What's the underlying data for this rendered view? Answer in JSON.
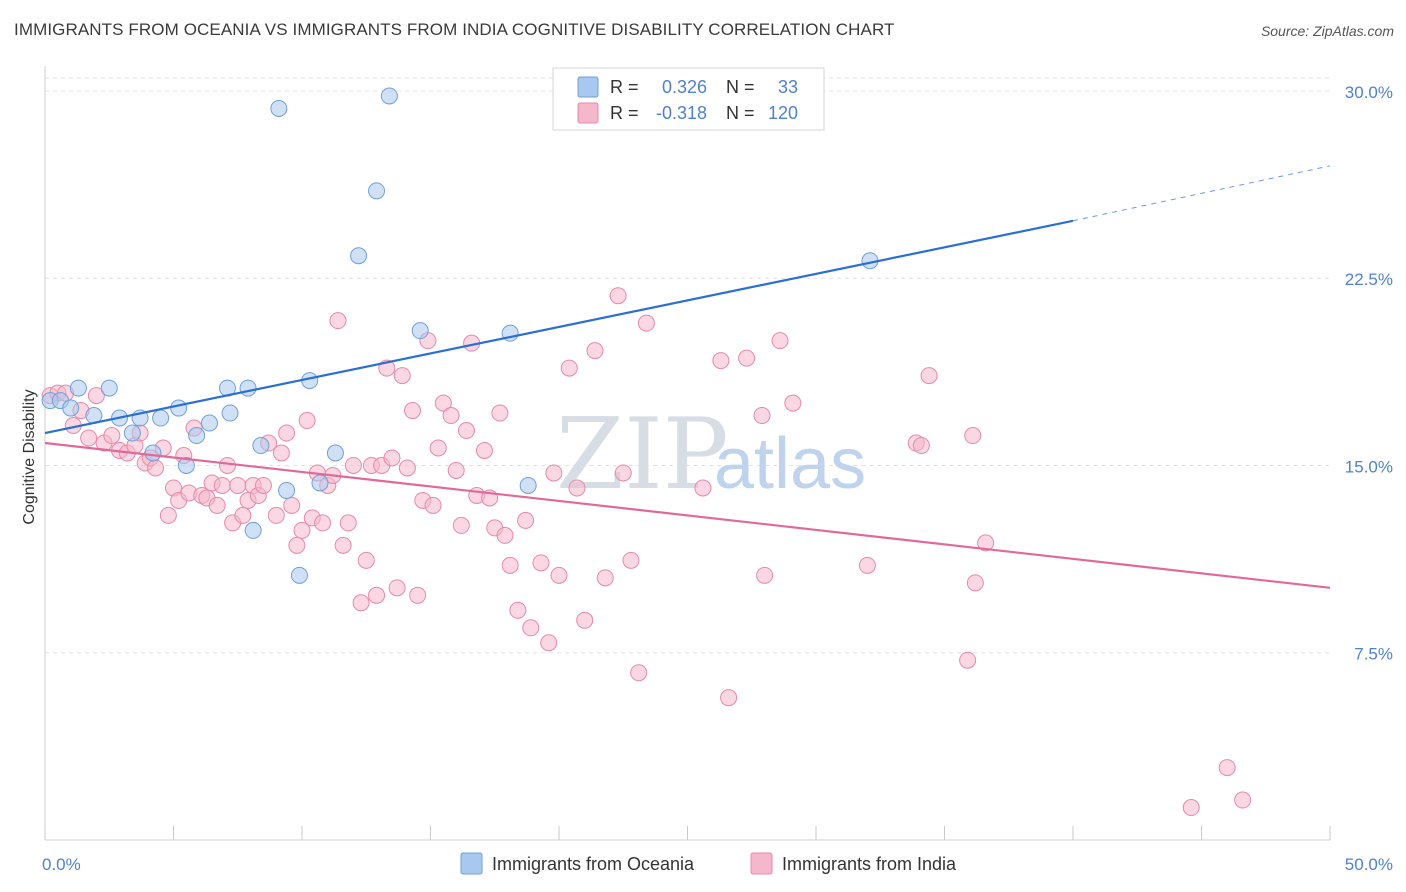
{
  "title": "IMMIGRANTS FROM OCEANIA VS IMMIGRANTS FROM INDIA COGNITIVE DISABILITY CORRELATION CHART",
  "source": "Source: ZipAtlas.com",
  "watermark": {
    "zip": "ZIP",
    "atlas": "atlas"
  },
  "colors": {
    "oceania_fill": "#a9c8ef",
    "oceania_stroke": "#6f9fd8",
    "oceania_line": "#2a6fd1",
    "india_fill": "#f5b7cb",
    "india_stroke": "#e58aa8",
    "india_line": "#e0699a",
    "tick_label": "#4f82c9",
    "grid": "#e3e3e3"
  },
  "chart_data": {
    "type": "scatter",
    "xlabel": "",
    "ylabel": "Cognitive Disability",
    "xlim": [
      0,
      50
    ],
    "ylim": [
      0,
      31
    ],
    "x_tick_labels": [
      {
        "value": 0,
        "label": "0.0%"
      },
      {
        "value": 50,
        "label": "50.0%"
      }
    ],
    "y_ticks": [
      {
        "value": 7.5,
        "label": "7.5%"
      },
      {
        "value": 15,
        "label": "15.0%"
      },
      {
        "value": 22.5,
        "label": "22.5%"
      },
      {
        "value": 30,
        "label": "30.0%"
      }
    ],
    "x_minor_ticks": [
      0,
      5,
      10,
      15,
      20,
      25,
      30,
      35,
      40,
      45,
      50
    ],
    "grid": true,
    "legend_position": "top-center",
    "stats": [
      {
        "r_label": "R =",
        "r_value": "0.326",
        "n_label": "N =",
        "n_value": "33"
      },
      {
        "r_label": "R =",
        "r_value": "-0.318",
        "n_label": "N =",
        "n_value": "120"
      }
    ],
    "series": [
      {
        "name": "Immigrants from Oceania",
        "trend": {
          "x0": 0,
          "y0": 16.3,
          "x1": 40,
          "y1": 24.8,
          "dash_to_x": 50,
          "dash_to_y": 27.0
        },
        "points": [
          [
            0.2,
            17.6
          ],
          [
            0.6,
            17.6
          ],
          [
            1.0,
            17.3
          ],
          [
            1.3,
            18.1
          ],
          [
            1.9,
            17.0
          ],
          [
            2.5,
            18.1
          ],
          [
            2.9,
            16.9
          ],
          [
            3.4,
            16.3
          ],
          [
            3.7,
            16.9
          ],
          [
            4.2,
            15.5
          ],
          [
            4.5,
            16.9
          ],
          [
            5.2,
            17.3
          ],
          [
            5.5,
            15.0
          ],
          [
            5.9,
            16.2
          ],
          [
            6.4,
            16.7
          ],
          [
            7.1,
            18.1
          ],
          [
            7.2,
            17.1
          ],
          [
            7.9,
            18.1
          ],
          [
            8.1,
            12.4
          ],
          [
            8.4,
            15.8
          ],
          [
            9.1,
            29.3
          ],
          [
            9.4,
            14.0
          ],
          [
            9.9,
            10.6
          ],
          [
            10.3,
            18.4
          ],
          [
            10.7,
            14.3
          ],
          [
            11.3,
            15.5
          ],
          [
            12.2,
            23.4
          ],
          [
            12.9,
            26.0
          ],
          [
            13.4,
            29.8
          ],
          [
            14.6,
            20.4
          ],
          [
            18.1,
            20.3
          ],
          [
            18.8,
            14.2
          ],
          [
            32.1,
            23.2
          ]
        ]
      },
      {
        "name": "Immigrants from India",
        "trend": {
          "x0": 0,
          "y0": 15.9,
          "x1": 50,
          "y1": 10.1
        },
        "points": [
          [
            0.2,
            17.8
          ],
          [
            0.5,
            17.9
          ],
          [
            0.8,
            17.9
          ],
          [
            1.1,
            16.6
          ],
          [
            1.4,
            17.2
          ],
          [
            1.7,
            16.1
          ],
          [
            2.0,
            17.8
          ],
          [
            2.3,
            15.9
          ],
          [
            2.6,
            16.2
          ],
          [
            2.9,
            15.6
          ],
          [
            3.2,
            15.5
          ],
          [
            3.5,
            15.8
          ],
          [
            3.7,
            16.3
          ],
          [
            3.9,
            15.1
          ],
          [
            4.1,
            15.3
          ],
          [
            4.3,
            14.9
          ],
          [
            4.6,
            15.7
          ],
          [
            4.8,
            13.0
          ],
          [
            5.0,
            14.1
          ],
          [
            5.2,
            13.6
          ],
          [
            5.4,
            15.4
          ],
          [
            5.6,
            13.9
          ],
          [
            5.8,
            16.5
          ],
          [
            6.1,
            13.8
          ],
          [
            6.3,
            13.7
          ],
          [
            6.5,
            14.3
          ],
          [
            6.7,
            13.4
          ],
          [
            6.9,
            14.2
          ],
          [
            7.1,
            15.0
          ],
          [
            7.3,
            12.7
          ],
          [
            7.5,
            14.2
          ],
          [
            7.7,
            13.0
          ],
          [
            7.9,
            13.6
          ],
          [
            8.1,
            14.2
          ],
          [
            8.3,
            13.8
          ],
          [
            8.5,
            14.2
          ],
          [
            8.7,
            15.9
          ],
          [
            9.0,
            13.0
          ],
          [
            9.2,
            15.5
          ],
          [
            9.4,
            16.3
          ],
          [
            9.6,
            13.4
          ],
          [
            9.8,
            11.8
          ],
          [
            10.0,
            12.4
          ],
          [
            10.2,
            16.8
          ],
          [
            10.4,
            12.9
          ],
          [
            10.6,
            14.7
          ],
          [
            10.8,
            12.7
          ],
          [
            11.0,
            14.2
          ],
          [
            11.2,
            14.6
          ],
          [
            11.4,
            20.8
          ],
          [
            11.6,
            11.8
          ],
          [
            11.8,
            12.7
          ],
          [
            12.0,
            15.0
          ],
          [
            12.3,
            9.5
          ],
          [
            12.5,
            11.2
          ],
          [
            12.7,
            15.0
          ],
          [
            12.9,
            9.8
          ],
          [
            13.1,
            15.0
          ],
          [
            13.3,
            18.9
          ],
          [
            13.5,
            15.3
          ],
          [
            13.7,
            10.1
          ],
          [
            13.9,
            18.6
          ],
          [
            14.1,
            14.9
          ],
          [
            14.3,
            17.2
          ],
          [
            14.5,
            9.8
          ],
          [
            14.7,
            13.6
          ],
          [
            14.9,
            20.0
          ],
          [
            15.1,
            13.4
          ],
          [
            15.3,
            15.7
          ],
          [
            15.5,
            17.5
          ],
          [
            15.8,
            17.0
          ],
          [
            16.0,
            14.8
          ],
          [
            16.2,
            12.6
          ],
          [
            16.4,
            16.4
          ],
          [
            16.6,
            19.9
          ],
          [
            16.8,
            13.8
          ],
          [
            17.1,
            15.6
          ],
          [
            17.3,
            13.7
          ],
          [
            17.5,
            12.5
          ],
          [
            17.7,
            17.1
          ],
          [
            17.9,
            12.2
          ],
          [
            18.1,
            11.0
          ],
          [
            18.4,
            9.2
          ],
          [
            18.7,
            12.8
          ],
          [
            18.9,
            8.5
          ],
          [
            19.3,
            11.1
          ],
          [
            19.6,
            7.9
          ],
          [
            19.8,
            14.7
          ],
          [
            20.0,
            10.6
          ],
          [
            20.4,
            18.9
          ],
          [
            20.7,
            14.1
          ],
          [
            21.0,
            8.8
          ],
          [
            21.4,
            19.6
          ],
          [
            21.8,
            10.5
          ],
          [
            22.3,
            21.8
          ],
          [
            22.5,
            14.7
          ],
          [
            22.8,
            11.2
          ],
          [
            23.1,
            6.7
          ],
          [
            23.4,
            20.7
          ],
          [
            25.6,
            14.1
          ],
          [
            26.3,
            19.2
          ],
          [
            26.6,
            5.7
          ],
          [
            27.3,
            19.3
          ],
          [
            27.9,
            17.0
          ],
          [
            28.0,
            10.6
          ],
          [
            28.6,
            20.0
          ],
          [
            29.1,
            17.5
          ],
          [
            32.0,
            11.0
          ],
          [
            33.9,
            15.9
          ],
          [
            34.1,
            15.8
          ],
          [
            34.4,
            18.6
          ],
          [
            35.9,
            7.2
          ],
          [
            36.1,
            16.2
          ],
          [
            36.2,
            10.3
          ],
          [
            36.6,
            11.9
          ],
          [
            44.6,
            1.3
          ],
          [
            46.0,
            2.9
          ],
          [
            46.6,
            1.6
          ]
        ]
      }
    ]
  }
}
